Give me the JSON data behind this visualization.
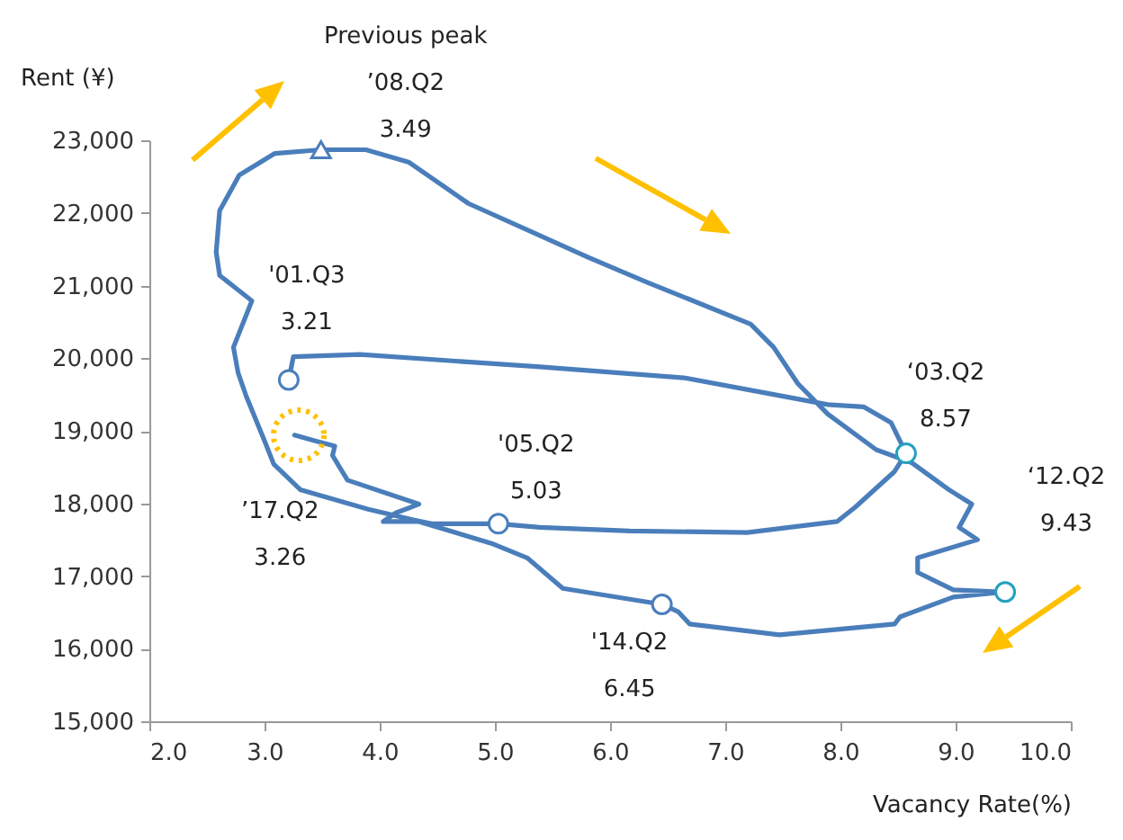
{
  "chart_data": {
    "type": "line",
    "xlabel": "Vacancy Rate(%)",
    "ylabel": "Rent (¥)",
    "xlim": [
      2,
      10
    ],
    "ylim": [
      15000,
      23000
    ],
    "xticks": [
      {
        "value": 2,
        "label": "2.0"
      },
      {
        "value": 3,
        "label": "3.0"
      },
      {
        "value": 4,
        "label": "4.0"
      },
      {
        "value": 5,
        "label": "5.0"
      },
      {
        "value": 6,
        "label": "6.0"
      },
      {
        "value": 7,
        "label": "7.0"
      },
      {
        "value": 8,
        "label": "8.0"
      },
      {
        "value": 9,
        "label": "9.0"
      },
      {
        "value": 10,
        "label": "10.0"
      }
    ],
    "yticks": [
      {
        "value": 15000,
        "label": "15,000"
      },
      {
        "value": 16000,
        "label": "16,000"
      },
      {
        "value": 17000,
        "label": "17,000"
      },
      {
        "value": 18000,
        "label": "18,000"
      },
      {
        "value": 19000,
        "label": "19,000"
      },
      {
        "value": 20000,
        "label": "20,000"
      },
      {
        "value": 21000,
        "label": "21,000"
      },
      {
        "value": 22000,
        "label": "22,000"
      },
      {
        "value": 23000,
        "label": "23,000"
      }
    ],
    "grid": false,
    "line_style": "solid",
    "series": [
      {
        "color": "#4a7ebb",
        "marker": "none",
        "x": [
          3.21,
          3.25,
          3.83,
          5.39,
          6.64,
          7.42,
          7.89,
          8.2,
          8.44,
          8.57,
          8.47,
          8.13,
          7.97,
          7.19,
          6.17,
          5.39,
          5.03,
          4.45,
          4.3,
          3.9,
          3.31,
          3.08,
          3.0,
          2.84,
          2.77,
          2.73,
          2.89,
          2.61,
          2.58,
          2.61,
          2.78,
          3.09,
          3.49,
          3.88,
          4.25,
          4.77,
          5.81,
          6.33,
          7.22,
          7.42,
          7.63,
          7.89,
          8.31,
          8.62,
          8.94,
          9.14,
          9.03,
          9.19,
          8.67,
          8.67,
          8.98,
          9.42,
          8.98,
          8.52,
          8.47,
          7.47,
          6.69,
          6.59,
          6.45,
          5.59,
          5.28,
          4.97,
          4.34,
          4.03,
          4.14,
          4.34,
          3.72,
          3.59,
          3.61,
          3.44,
          3.26
        ],
        "values": [
          19700,
          20020,
          20050,
          19880,
          19730,
          19500,
          19360,
          19330,
          19110,
          18690,
          18440,
          17950,
          17750,
          17600,
          17620,
          17670,
          17720,
          17720,
          17770,
          17920,
          18190,
          18540,
          18860,
          19480,
          19800,
          20150,
          20790,
          21140,
          21460,
          22030,
          22520,
          22820,
          22870,
          22870,
          22700,
          22130,
          21390,
          21040,
          20470,
          20150,
          19650,
          19230,
          18740,
          18560,
          18190,
          17990,
          17670,
          17500,
          17250,
          17050,
          16810,
          16780,
          16710,
          16440,
          16340,
          16190,
          16340,
          16510,
          16610,
          16830,
          17250,
          17450,
          17750,
          17750,
          17870,
          17990,
          18320,
          18660,
          18790,
          18860,
          18940
        ]
      },
      {
        "type": "scatter",
        "color": "#4a7ebb",
        "marker": "triangle",
        "x": [
          3.49
        ],
        "values": [
          22870
        ]
      },
      {
        "type": "scatter",
        "color": "#4a7ebb",
        "marker": "circle",
        "x": [
          3.21,
          5.03,
          6.45
        ],
        "values": [
          19700,
          17720,
          16610
        ]
      },
      {
        "type": "scatter",
        "color": "#23a0c0",
        "marker": "circle",
        "x": [
          8.57,
          9.43
        ],
        "values": [
          18690,
          16780
        ]
      }
    ],
    "annotations": [
      {
        "text": "Previous peak\n’08.Q2\n3.49",
        "x": 3.49,
        "y": 22870
      },
      {
        "text": "'01.Q3\n3.21",
        "x": 3.21,
        "y": 19700
      },
      {
        "text": "‘03.Q2\n8.57",
        "x": 8.57,
        "y": 18690
      },
      {
        "text": "'05.Q2\n5.03",
        "x": 5.03,
        "y": 17720
      },
      {
        "text": "‘12.Q2\n9.43",
        "x": 9.43,
        "y": 16780
      },
      {
        "text": "'14.Q2\n6.45",
        "x": 6.45,
        "y": 16610
      },
      {
        "text": "’17.Q2\n3.26",
        "x": 3.26,
        "y": 18940
      }
    ]
  }
}
